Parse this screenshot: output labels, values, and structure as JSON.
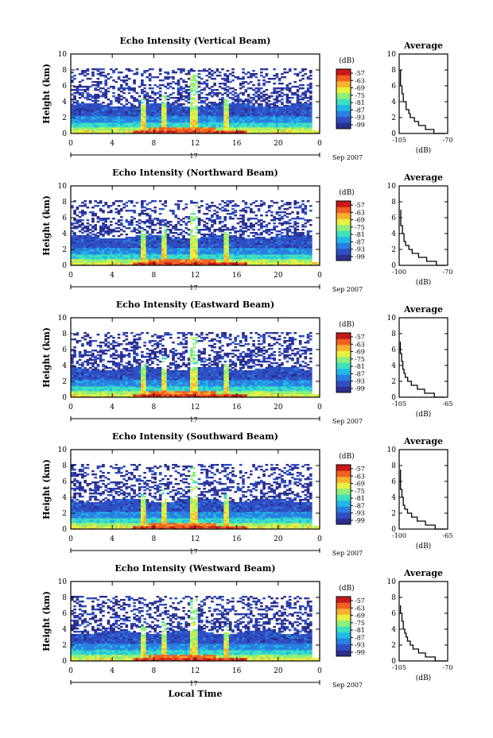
{
  "figure": {
    "xlabel": "Local Time",
    "date_label": "Sep 2007",
    "day_label": "17",
    "colorbar_unit": "(dB)",
    "colorbar_ticks": [
      "-57",
      "-63",
      "-69",
      "-75",
      "-81",
      "-87",
      "-93",
      "-99"
    ],
    "colors": {
      "palette": [
        "#2b2f8f",
        "#2f4fc4",
        "#2a7fe0",
        "#22b8e8",
        "#3ee0c0",
        "#8cf07a",
        "#e8f040",
        "#f8b030",
        "#f06020",
        "#c81818"
      ]
    }
  },
  "chart_data": [
    {
      "type": "heatmap",
      "title": "Echo Intensity (Vertical Beam)",
      "ylabel": "Height (km)",
      "x_ticks": [
        "0",
        "4",
        "8",
        "12",
        "16",
        "20",
        "0"
      ],
      "y_ticks": [
        "0",
        "2",
        "4",
        "6",
        "8",
        "10"
      ],
      "xlim": [
        0,
        24
      ],
      "ylim": [
        0,
        10
      ],
      "grid": false,
      "average": {
        "title": "Average",
        "xlabel": "(dB)",
        "xlim_labels": [
          "-105",
          "-70"
        ],
        "xlim": [
          -105,
          -70
        ],
        "y_ticks": [
          "0",
          "2",
          "4",
          "6",
          "8",
          "10"
        ],
        "profile": [
          [
            -72,
            0
          ],
          [
            -80,
            0.5
          ],
          [
            -86,
            1
          ],
          [
            -91,
            1.5
          ],
          [
            -94,
            2
          ],
          [
            -97,
            2.5
          ],
          [
            -98,
            3
          ],
          [
            -100,
            3.5
          ],
          [
            -100,
            4
          ],
          [
            -102,
            4.5
          ],
          [
            -102,
            5
          ],
          [
            -103,
            5.5
          ],
          [
            -103,
            6
          ],
          [
            -104,
            6.5
          ],
          [
            -104,
            7
          ],
          [
            -104,
            7.5
          ],
          [
            -104,
            8
          ]
        ]
      }
    },
    {
      "type": "heatmap",
      "title": "Echo Intensity (Northward Beam)",
      "ylabel": "Height (km)",
      "x_ticks": [
        "0",
        "4",
        "8",
        "12",
        "16",
        "20",
        "0"
      ],
      "y_ticks": [
        "0",
        "2",
        "4",
        "6",
        "8",
        "10"
      ],
      "xlim": [
        0,
        24
      ],
      "ylim": [
        0,
        10
      ],
      "grid": false,
      "average": {
        "title": "Average",
        "xlabel": "(dB)",
        "xlim_labels": [
          "-100",
          "-70"
        ],
        "xlim": [
          -100,
          -70
        ],
        "y_ticks": [
          "0",
          "2",
          "4",
          "6",
          "8",
          "10"
        ],
        "profile": [
          [
            -71,
            0
          ],
          [
            -77,
            0.5
          ],
          [
            -83,
            1
          ],
          [
            -88,
            1.5
          ],
          [
            -92,
            2
          ],
          [
            -94,
            2.5
          ],
          [
            -96,
            3
          ],
          [
            -97,
            3.5
          ],
          [
            -97,
            4
          ],
          [
            -98,
            4.5
          ],
          [
            -98,
            5
          ],
          [
            -99,
            5.5
          ],
          [
            -99,
            6
          ],
          [
            -99,
            6.5
          ],
          [
            -99,
            7
          ]
        ]
      }
    },
    {
      "type": "heatmap",
      "title": "Echo Intensity (Eastward Beam)",
      "ylabel": "Height (km)",
      "x_ticks": [
        "0",
        "4",
        "8",
        "12",
        "16",
        "20",
        "0"
      ],
      "y_ticks": [
        "0",
        "2",
        "4",
        "6",
        "8",
        "10"
      ],
      "xlim": [
        0,
        24
      ],
      "ylim": [
        0,
        10
      ],
      "grid": false,
      "average": {
        "title": "Average",
        "xlabel": "(dB)",
        "xlim_labels": [
          "-105",
          "-65"
        ],
        "xlim": [
          -105,
          -65
        ],
        "y_ticks": [
          "0",
          "2",
          "4",
          "6",
          "8",
          "10"
        ],
        "profile": [
          [
            -67,
            0
          ],
          [
            -76,
            0.5
          ],
          [
            -84,
            1
          ],
          [
            -90,
            1.5
          ],
          [
            -95,
            2
          ],
          [
            -98,
            2.5
          ],
          [
            -100,
            3
          ],
          [
            -101,
            3.5
          ],
          [
            -102,
            4
          ],
          [
            -102,
            4.5
          ],
          [
            -103,
            5
          ],
          [
            -103,
            5.5
          ],
          [
            -104,
            6
          ],
          [
            -104,
            6.5
          ],
          [
            -104,
            7
          ]
        ]
      }
    },
    {
      "type": "heatmap",
      "title": "Echo Intensity (Southward Beam)",
      "ylabel": "Height (km)",
      "x_ticks": [
        "0",
        "4",
        "8",
        "12",
        "16",
        "20",
        "0"
      ],
      "y_ticks": [
        "0",
        "2",
        "4",
        "6",
        "8",
        "10"
      ],
      "xlim": [
        0,
        24
      ],
      "ylim": [
        0,
        10
      ],
      "grid": false,
      "average": {
        "title": "Average",
        "xlabel": "(dB)",
        "xlim_labels": [
          "-100",
          "-65"
        ],
        "xlim": [
          -100,
          -65
        ],
        "y_ticks": [
          "0",
          "2",
          "4",
          "6",
          "8",
          "10"
        ],
        "profile": [
          [
            -66,
            0
          ],
          [
            -74,
            0.5
          ],
          [
            -81,
            1
          ],
          [
            -87,
            1.5
          ],
          [
            -91,
            2
          ],
          [
            -94,
            2.5
          ],
          [
            -96,
            3
          ],
          [
            -97,
            3.5
          ],
          [
            -97,
            4
          ],
          [
            -98,
            4.5
          ],
          [
            -98,
            5
          ],
          [
            -99,
            5.5
          ],
          [
            -99,
            6
          ],
          [
            -99,
            6.5
          ],
          [
            -99,
            7
          ],
          [
            -99,
            7.5
          ]
        ]
      }
    },
    {
      "type": "heatmap",
      "title": "Echo Intensity (Westward Beam)",
      "ylabel": "Height (km)",
      "x_ticks": [
        "0",
        "4",
        "8",
        "12",
        "16",
        "20",
        "0"
      ],
      "y_ticks": [
        "0",
        "2",
        "4",
        "6",
        "8",
        "10"
      ],
      "xlim": [
        0,
        24
      ],
      "ylim": [
        0,
        10
      ],
      "grid": false,
      "average": {
        "title": "Average",
        "xlabel": "(dB)",
        "xlim_labels": [
          "-105",
          "-70"
        ],
        "xlim": [
          -105,
          -70
        ],
        "y_ticks": [
          "0",
          "2",
          "4",
          "6",
          "8",
          "10"
        ],
        "profile": [
          [
            -71,
            0
          ],
          [
            -79,
            0.5
          ],
          [
            -86,
            1
          ],
          [
            -91,
            1.5
          ],
          [
            -95,
            2
          ],
          [
            -97,
            2.5
          ],
          [
            -99,
            3
          ],
          [
            -100,
            3.5
          ],
          [
            -101,
            4
          ],
          [
            -102,
            4.5
          ],
          [
            -102,
            5
          ],
          [
            -103,
            5.5
          ],
          [
            -103,
            6
          ],
          [
            -104,
            6.5
          ],
          [
            -104,
            7
          ]
        ]
      }
    }
  ]
}
